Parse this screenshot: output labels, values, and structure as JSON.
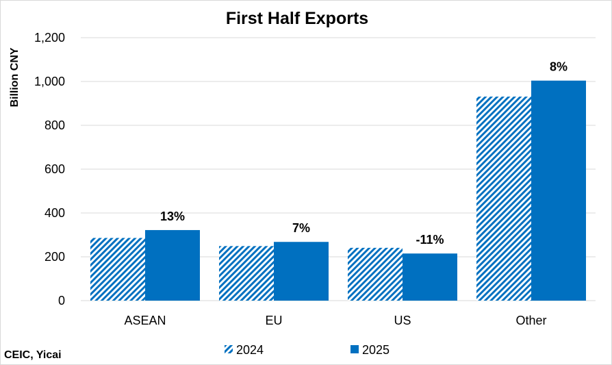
{
  "chart_data": {
    "type": "bar",
    "title": "First Half Exports",
    "ylabel": "Billion CNY",
    "xlabel": "",
    "categories": [
      "ASEAN",
      "EU",
      "US",
      "Other"
    ],
    "series": [
      {
        "name": "2024",
        "values": [
          286,
          249,
          241,
          931
        ],
        "color": "#0070C0",
        "pattern": "diagonal-hatch"
      },
      {
        "name": "2025",
        "values": [
          322,
          268,
          215,
          1004
        ],
        "color": "#0070C0",
        "pattern": "solid"
      }
    ],
    "data_labels": [
      "13%",
      "7%",
      "-11%",
      "8%"
    ],
    "ylim": [
      0,
      1200
    ],
    "yticks": [
      "0",
      "200",
      "400",
      "600",
      "800",
      "1,000",
      "1,200"
    ],
    "ytick_values": [
      0,
      200,
      400,
      600,
      800,
      1000,
      1200
    ],
    "grid": true,
    "legend_position": "bottom"
  },
  "source": "CEIC, Yicai"
}
